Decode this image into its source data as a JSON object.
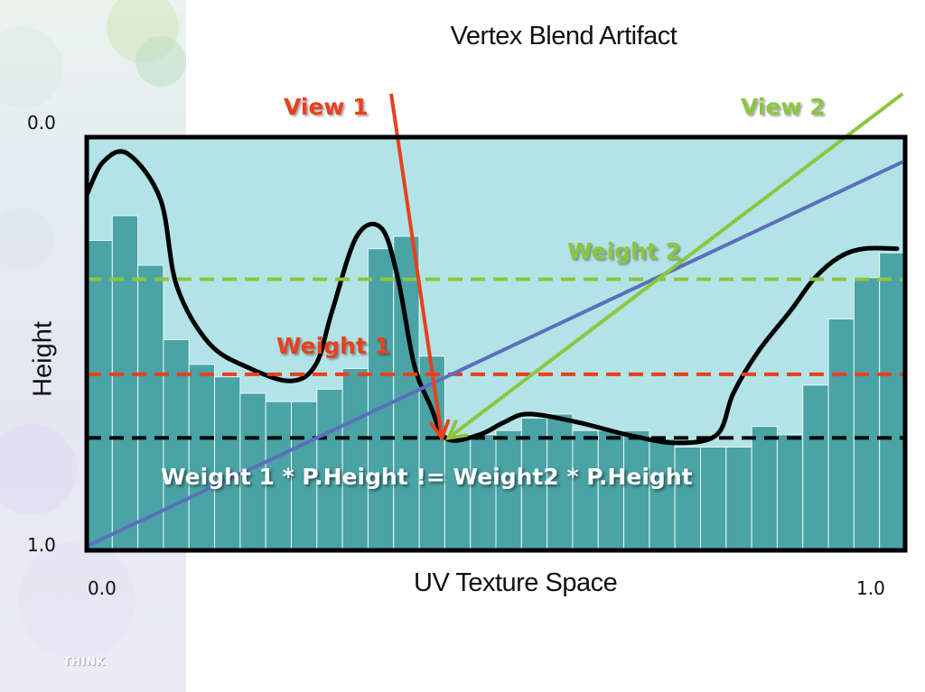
{
  "slide": {
    "title": "Vertex Blend Artifact",
    "logo_text": "THINK"
  },
  "axes": {
    "x_title": "UV Texture Space",
    "y_title": "Height",
    "x_min_label": "0.0",
    "x_max_label": "1.0",
    "y_min_label": "0.0",
    "y_max_label": "1.0"
  },
  "labels": {
    "view1": "View 1",
    "view2": "View 2",
    "weight1": "Weight 1",
    "weight2": "Weight 2",
    "equation": "Weight 1 * P.Height != Weight2 * P.Height"
  },
  "colors": {
    "panel_fill": "#b2e3e6",
    "bar_fill": "#4aa3a5",
    "view1": "#e8401c",
    "view2": "#8cc63f",
    "blend_line": "#5b6fbd",
    "curve": "#000000",
    "black_dashed": "#000000"
  },
  "heightfield": {
    "bar_heights": [
      0.25,
      0.19,
      0.31,
      0.49,
      0.55,
      0.58,
      0.62,
      0.64,
      0.64,
      0.61,
      0.56,
      0.27,
      0.24,
      0.53,
      0.72,
      0.72,
      0.71,
      0.68,
      0.67,
      0.71,
      0.71,
      0.71,
      0.73,
      0.75,
      0.75,
      0.75,
      0.7,
      0.72,
      0.6,
      0.44,
      0.34,
      0.28
    ],
    "curve_points": [
      [
        0.0,
        0.14
      ],
      [
        0.02,
        0.06
      ],
      [
        0.05,
        0.04
      ],
      [
        0.09,
        0.15
      ],
      [
        0.11,
        0.36
      ],
      [
        0.15,
        0.5
      ],
      [
        0.2,
        0.56
      ],
      [
        0.25,
        0.59
      ],
      [
        0.28,
        0.55
      ],
      [
        0.3,
        0.42
      ],
      [
        0.33,
        0.24
      ],
      [
        0.36,
        0.22
      ],
      [
        0.38,
        0.34
      ],
      [
        0.4,
        0.55
      ],
      [
        0.42,
        0.65
      ],
      [
        0.44,
        0.73
      ],
      [
        0.48,
        0.72
      ],
      [
        0.51,
        0.69
      ],
      [
        0.54,
        0.67
      ],
      [
        0.6,
        0.69
      ],
      [
        0.66,
        0.72
      ],
      [
        0.72,
        0.74
      ],
      [
        0.77,
        0.72
      ],
      [
        0.79,
        0.62
      ],
      [
        0.82,
        0.52
      ],
      [
        0.86,
        0.42
      ],
      [
        0.89,
        0.34
      ],
      [
        0.92,
        0.29
      ],
      [
        0.95,
        0.27
      ],
      [
        0.99,
        0.27
      ]
    ]
  },
  "lines": {
    "weight1_level": 0.574,
    "weight2_level": 0.344,
    "black_level": 0.728,
    "blend": [
      [
        0.0,
        0.99
      ],
      [
        0.997,
        0.06
      ]
    ],
    "view1": [
      [
        0.372,
        -0.105
      ],
      [
        0.434,
        0.728
      ]
    ],
    "view2": [
      [
        0.997,
        -0.105
      ],
      [
        0.442,
        0.728
      ]
    ]
  }
}
